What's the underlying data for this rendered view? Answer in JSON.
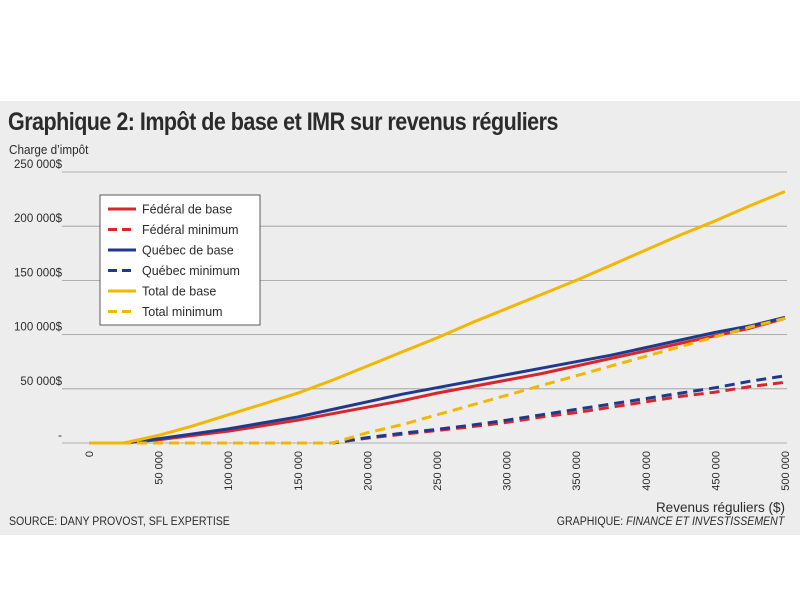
{
  "chart_data": {
    "type": "line",
    "title": "Graphique 2: Impôt de base et IMR sur revenus réguliers",
    "ylabel": "Charge d’impôt",
    "xlabel": "Revenus réguliers ($)",
    "x": [
      0,
      25000,
      50000,
      75000,
      100000,
      125000,
      150000,
      175000,
      200000,
      225000,
      250000,
      275000,
      300000,
      325000,
      350000,
      375000,
      400000,
      425000,
      450000,
      475000,
      500000
    ],
    "xticks": [
      "0",
      "50 000",
      "100 000",
      "150 000",
      "200 000",
      "250 000",
      "300 000",
      "350 000",
      "400 000",
      "450 000",
      "500 000"
    ],
    "xtick_values": [
      0,
      50000,
      100000,
      150000,
      200000,
      250000,
      300000,
      350000,
      400000,
      450000,
      500000
    ],
    "yticks": [
      "-",
      "50 000$",
      "100 000$",
      "150 000$",
      "200 000$",
      "250 000$"
    ],
    "ytick_values": [
      0,
      50000,
      100000,
      150000,
      200000,
      250000
    ],
    "xlim": [
      0,
      500000
    ],
    "ylim": [
      0,
      250000
    ],
    "grid": "horizontal",
    "legend_position": "top-left",
    "series": [
      {
        "name": "Fédéral de base",
        "color": "#d7262c",
        "dash": false,
        "values": [
          0,
          0,
          3000,
          7000,
          11000,
          16000,
          21000,
          27000,
          33000,
          39000,
          46000,
          52000,
          58000,
          64000,
          71000,
          78000,
          85000,
          92000,
          99000,
          106000,
          115000
        ]
      },
      {
        "name": "Fédéral minimum",
        "color": "#d7262c",
        "dash": true,
        "values": [
          0,
          0,
          0,
          0,
          0,
          0,
          0,
          0,
          4500,
          8000,
          11500,
          15000,
          19000,
          24000,
          28000,
          33000,
          38000,
          43000,
          47000,
          52000,
          56000
        ]
      },
      {
        "name": "Québec de base",
        "color": "#1f3a8c",
        "dash": false,
        "values": [
          0,
          0,
          4000,
          8500,
          13000,
          18500,
          24000,
          31000,
          38000,
          45000,
          51000,
          57000,
          63000,
          69000,
          75000,
          81000,
          88000,
          95000,
          102000,
          108000,
          116000
        ]
      },
      {
        "name": "Québec minimum",
        "color": "#1f3a8c",
        "dash": true,
        "values": [
          0,
          0,
          0,
          0,
          0,
          0,
          0,
          0,
          5000,
          9000,
          12500,
          16500,
          21000,
          26000,
          31000,
          36000,
          41000,
          46000,
          51000,
          57000,
          62000
        ]
      },
      {
        "name": "Total de base",
        "color": "#f2b700",
        "dash": false,
        "values": [
          0,
          0,
          7000,
          16000,
          26000,
          36000,
          46000,
          58000,
          71000,
          84000,
          97000,
          111000,
          124000,
          137000,
          150000,
          164000,
          178000,
          192000,
          205000,
          219000,
          232000
        ]
      },
      {
        "name": "Total minimum",
        "color": "#f2b700",
        "dash": true,
        "values": [
          0,
          0,
          0,
          0,
          0,
          0,
          0,
          0,
          9500,
          17000,
          26000,
          35000,
          44000,
          53000,
          62000,
          71000,
          80000,
          89000,
          98000,
          107000,
          115000
        ]
      }
    ],
    "source": "SOURCE: DANY PROVOST, SFL EXPERTISE",
    "credit_prefix": "GRAPHIQUE: ",
    "credit_name": "FINANCE ET INVESTISSEMENT"
  }
}
